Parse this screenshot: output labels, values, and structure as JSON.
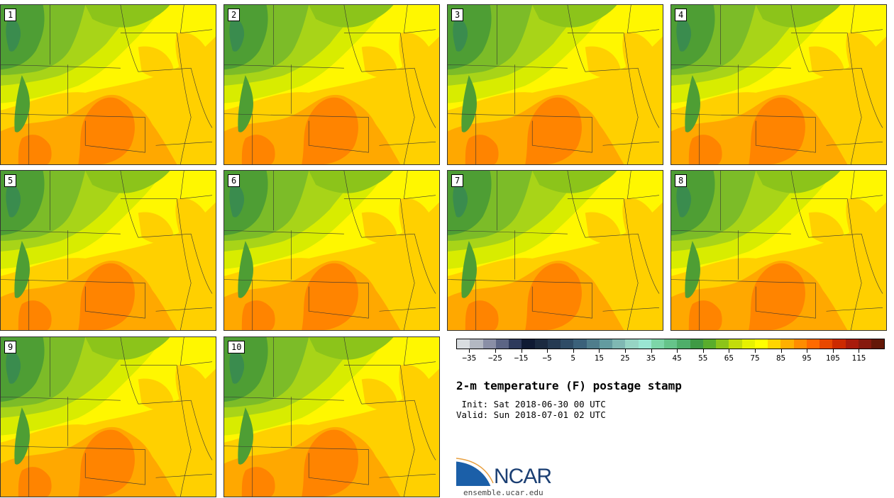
{
  "title": "2-m temperature (F) postage stamp",
  "init": " Init: Sat 2018-06-30 00 UTC",
  "valid": "Valid: Sun 2018-07-01 02 UTC",
  "panels": [
    "1",
    "2",
    "3",
    "4",
    "5",
    "6",
    "7",
    "8",
    "9",
    "10"
  ],
  "colorbar": {
    "colors": [
      "#d9dde0",
      "#b3b8c2",
      "#8a8fa6",
      "#5c6585",
      "#2e3a5c",
      "#0f1a33",
      "#1b2a40",
      "#253a52",
      "#2f4c66",
      "#3b617a",
      "#4f7d8c",
      "#639ba0",
      "#7fb8b3",
      "#96d4c4",
      "#9ae6d2",
      "#7dd6a8",
      "#66c48a",
      "#4fae6a",
      "#3f9a45",
      "#59ad2c",
      "#8cc41a",
      "#c2dc0a",
      "#e6f200",
      "#ffff00",
      "#ffd500",
      "#ffb000",
      "#ff8c00",
      "#ff6a00",
      "#e84800",
      "#cc2a00",
      "#a81c0c",
      "#861a0e",
      "#641808"
    ],
    "tick_labels": [
      "-35",
      "-25",
      "-15",
      "-5",
      "5",
      "15",
      "25",
      "35",
      "45",
      "55",
      "65",
      "75",
      "85",
      "95",
      "105",
      "115"
    ],
    "min": -40,
    "max": 125,
    "step": 5
  },
  "logo": {
    "text": "NCAR",
    "url": "ensemble.ucar.edu"
  }
}
